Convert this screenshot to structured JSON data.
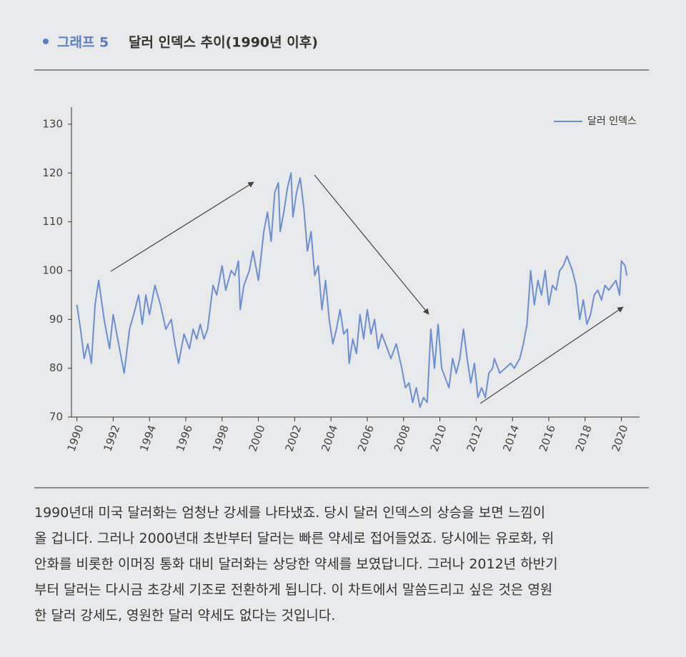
{
  "header": {
    "label": "그래프 5",
    "title": "달러 인덱스 추이(1990년 이후)"
  },
  "chart_data": {
    "type": "line",
    "x": [
      1990.0,
      1990.2,
      1990.4,
      1990.6,
      1990.8,
      1991.0,
      1991.2,
      1991.5,
      1991.8,
      1992.0,
      1992.3,
      1992.6,
      1992.9,
      1993.2,
      1993.4,
      1993.6,
      1993.8,
      1994.0,
      1994.3,
      1994.6,
      1994.9,
      1995.2,
      1995.4,
      1995.6,
      1995.9,
      1996.2,
      1996.4,
      1996.6,
      1996.8,
      1997.0,
      1997.2,
      1997.5,
      1997.7,
      1998.0,
      1998.2,
      1998.5,
      1998.7,
      1998.9,
      1999.0,
      1999.2,
      1999.5,
      1999.7,
      2000.0,
      2000.3,
      2000.5,
      2000.7,
      2000.9,
      2001.1,
      2001.2,
      2001.4,
      2001.6,
      2001.8,
      2001.9,
      2002.1,
      2002.3,
      2002.5,
      2002.7,
      2002.9,
      2003.1,
      2003.3,
      2003.5,
      2003.7,
      2003.9,
      2004.1,
      2004.3,
      2004.5,
      2004.7,
      2004.9,
      2005.0,
      2005.2,
      2005.4,
      2005.6,
      2005.8,
      2006.0,
      2006.2,
      2006.4,
      2006.6,
      2006.8,
      2007.0,
      2007.3,
      2007.6,
      2007.9,
      2008.1,
      2008.3,
      2008.5,
      2008.7,
      2008.9,
      2009.1,
      2009.3,
      2009.5,
      2009.7,
      2009.9,
      2010.1,
      2010.3,
      2010.5,
      2010.7,
      2010.9,
      2011.1,
      2011.3,
      2011.5,
      2011.7,
      2011.9,
      2012.1,
      2012.3,
      2012.5,
      2012.7,
      2012.9,
      2013.0,
      2013.3,
      2013.6,
      2013.9,
      2014.1,
      2014.4,
      2014.6,
      2014.8,
      2015.0,
      2015.2,
      2015.4,
      2015.6,
      2015.8,
      2016.0,
      2016.2,
      2016.4,
      2016.6,
      2016.8,
      2017.0,
      2017.3,
      2017.5,
      2017.7,
      2017.9,
      2018.1,
      2018.3,
      2018.5,
      2018.7,
      2018.9,
      2019.1,
      2019.3,
      2019.5,
      2019.7,
      2019.9,
      2020.0,
      2020.2,
      2020.3
    ],
    "series": [
      {
        "name": "달러 인덱스",
        "color": "#6b8fd2",
        "values": [
          93,
          88,
          82,
          85,
          81,
          93,
          98,
          90,
          84,
          91,
          85,
          79,
          88,
          92,
          95,
          89,
          95,
          91,
          97,
          93,
          88,
          90,
          85,
          81,
          87,
          84,
          88,
          86,
          89,
          86,
          88,
          97,
          95,
          101,
          96,
          100,
          99,
          102,
          92,
          97,
          100,
          104,
          98,
          108,
          112,
          106,
          116,
          118,
          108,
          112,
          117,
          120,
          111,
          116,
          119,
          113,
          104,
          108,
          99,
          101,
          92,
          98,
          90,
          85,
          88,
          92,
          87,
          88,
          81,
          86,
          83,
          91,
          86,
          92,
          87,
          90,
          84,
          87,
          85,
          82,
          85,
          80,
          76,
          77,
          73,
          76,
          72,
          74,
          73,
          88,
          80,
          89,
          80,
          78,
          76,
          82,
          79,
          82,
          88,
          82,
          77,
          81,
          74,
          76,
          74,
          79,
          80,
          82,
          79,
          80,
          81,
          80,
          82,
          85,
          89,
          100,
          93,
          98,
          95,
          100,
          93,
          97,
          96,
          100,
          101,
          103,
          100,
          97,
          90,
          94,
          89,
          91,
          95,
          96,
          94,
          97,
          96,
          97,
          98,
          95,
          102,
          101,
          99
        ]
      }
    ],
    "xlim": [
      1989.7,
      2021
    ],
    "ylim": [
      70,
      133.5
    ],
    "xticks": [
      1990,
      1992,
      1994,
      1996,
      1998,
      2000,
      2002,
      2004,
      2006,
      2008,
      2010,
      2012,
      2014,
      2016,
      2018,
      2020
    ],
    "yticks": [
      70,
      80,
      90,
      100,
      110,
      120,
      130
    ],
    "legend": "top-right"
  },
  "body": {
    "lines": [
      "1990년대 미국 달러화는 엄청난 강세를 나타냈죠. 당시 달러 인덱스의 상승을 보면 느낌이",
      "올 겁니다. 그러나 2000년대 초반부터 달러는 빠른 약세로 접어들었죠. 당시에는 유로화, 위",
      "안화를 비롯한 이머징 통화 대비 달러화는 상당한 약세를 보였답니다. 그러나 2012년 하반기",
      "부터 달러는 다시금 초강세 기조로 전환하게 됩니다. 이 차트에서 말씀드리고 싶은 것은 영원",
      "한 달러 강세도, 영원한 달러 약세도 없다는 것입니다."
    ]
  }
}
